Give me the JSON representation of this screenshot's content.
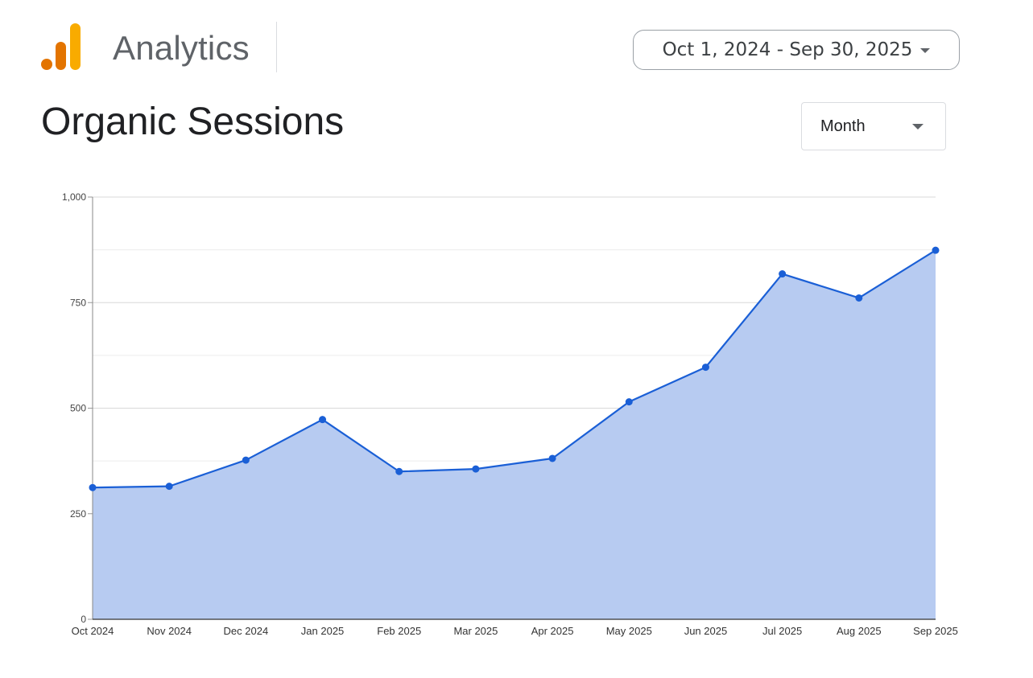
{
  "header": {
    "brand": "Analytics",
    "date_range": "Oct 1, 2024 - Sep 30, 2025",
    "logo_colors": [
      "#e37400",
      "#f9ab00"
    ]
  },
  "page": {
    "title": "Organic Sessions",
    "granularity": "Month",
    "icons": [
      "analytics-logo-icon",
      "chevron-down-icon"
    ]
  },
  "chart_data": {
    "type": "area",
    "x": [
      "Oct 2024",
      "Nov 2024",
      "Dec 2024",
      "Jan 2025",
      "Feb 2025",
      "Mar 2025",
      "Apr 2025",
      "May 2025",
      "Jun 2025",
      "Jul 2025",
      "Aug 2025",
      "Sep 2025"
    ],
    "values": [
      312,
      315,
      377,
      473,
      350,
      356,
      381,
      515,
      597,
      818,
      761,
      874
    ],
    "ylim": [
      0,
      1000
    ],
    "yticks": [
      0,
      250,
      500,
      750,
      1000
    ],
    "ytick_labels": [
      "0",
      "250",
      "500",
      "750",
      "1,000"
    ],
    "grid": true,
    "line_color": "#1a5fd6",
    "fill_color": "#b7cbf1"
  }
}
